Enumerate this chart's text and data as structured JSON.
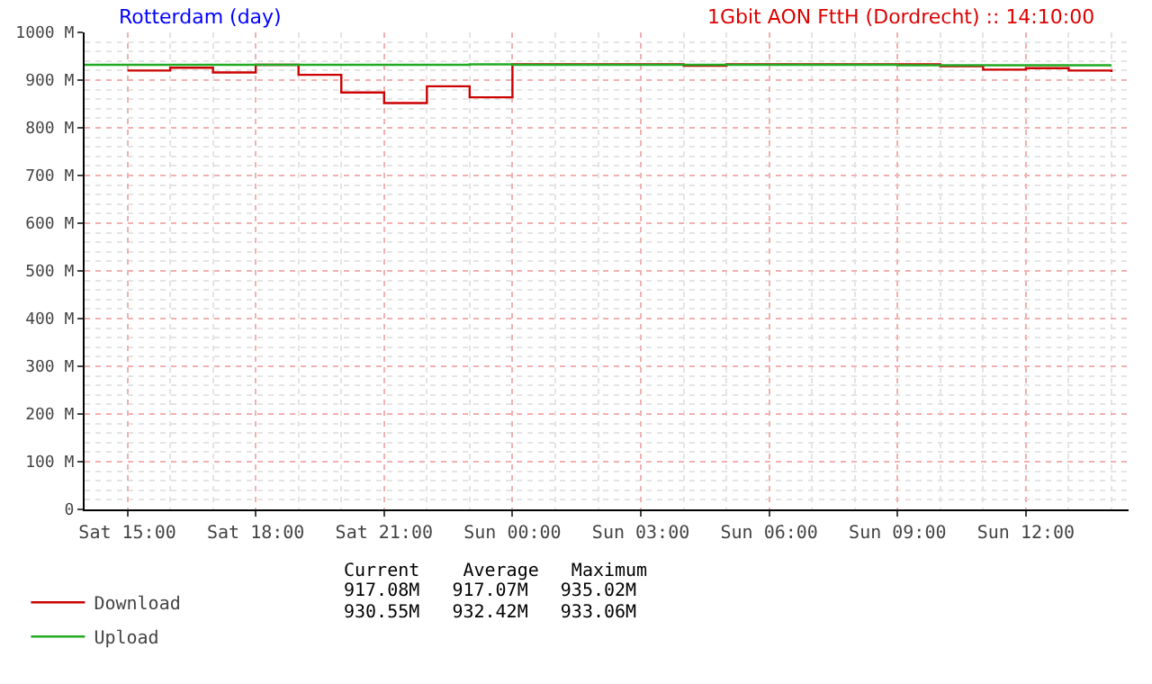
{
  "chart_data": {
    "type": "step",
    "title": "Rotterdam (day)",
    "subtitle": "1Gbit AON FttH (Dordrecht) :: 14:10:00",
    "categories": [
      null,
      "Sat 15:00",
      null,
      null,
      "Sat 18:00",
      null,
      null,
      "Sat 21:00",
      null,
      null,
      "Sun 00:00",
      null,
      null,
      "Sun 03:00",
      null,
      null,
      "Sun 06:00",
      null,
      null,
      "Sun 09:00",
      null,
      null,
      "Sun 12:00",
      null,
      null
    ],
    "ylim": [
      0,
      1000
    ],
    "yticks": [
      0,
      {
        "value": 100,
        "label": "100 M"
      },
      {
        "value": 200,
        "label": "200 M"
      },
      {
        "value": 300,
        "label": "300 M"
      },
      {
        "value": 400,
        "label": "400 M"
      },
      {
        "value": 500,
        "label": "500 M"
      },
      {
        "value": 600,
        "label": "600 M"
      },
      {
        "value": 700,
        "label": "700 M"
      },
      {
        "value": 800,
        "label": "800 M"
      },
      {
        "value": 900,
        "label": "900 M"
      },
      {
        "value": 1000,
        "label": "1000 M"
      }
    ],
    "grid": true,
    "legend": "bottom",
    "marker": "none",
    "line_style": "solid",
    "series": [
      {
        "name": "Download",
        "color": "#cc0000",
        "values": [
          null,
          920,
          926,
          916,
          932,
          911,
          874,
          852,
          887,
          864,
          933,
          933,
          933,
          933,
          930,
          933,
          933,
          933,
          933,
          933,
          929,
          922,
          925,
          920,
          917
        ]
      },
      {
        "name": "Upload",
        "color": "#22aa22",
        "values": [
          932,
          932,
          932,
          932,
          932,
          932,
          932,
          932,
          932,
          933,
          932,
          932,
          932,
          932,
          932,
          932,
          932,
          932,
          932,
          931,
          931,
          931,
          931,
          931,
          931
        ]
      }
    ],
    "annotations": [
      "Current    Average   Maximum",
      "917.08M   917.07M   935.02M",
      "930.55M   932.42M   933.06M"
    ]
  }
}
